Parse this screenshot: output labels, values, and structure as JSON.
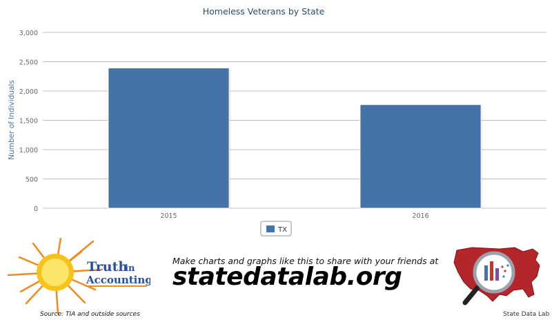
{
  "chart_data": {
    "type": "bar",
    "title": "Homeless Veterans by State",
    "xlabel": "",
    "ylabel": "Number of Individuals",
    "categories": [
      "2015",
      "2016"
    ],
    "series": [
      {
        "name": "TX",
        "values": [
          2393,
          1768
        ],
        "color": "#4572A7"
      }
    ],
    "ylim": [
      0,
      3000
    ],
    "yticks": [
      0,
      500,
      1000,
      1500,
      2000,
      2500,
      3000
    ],
    "ytick_labels": [
      "0",
      "500",
      "1,000",
      "1,500",
      "2,000",
      "2,500",
      "3,000"
    ],
    "grid": true,
    "legend": "bottom-center"
  },
  "footer": {
    "tia_logo_text_line1": "Truth",
    "tia_logo_text_in": "in",
    "tia_logo_text_line2": "Accounting",
    "source": "Source: TIA and outside sources",
    "promo": "Make charts and graphs like this to share with your friends at",
    "site": "statedatalab.org",
    "sdl_label": "State Data Lab"
  },
  "colors": {
    "bar": "#4572A7",
    "title": "#274b6d",
    "axis_label": "#4d759e",
    "sun": "#f7c31b",
    "rays": "#f18a1c",
    "logo_text": "#2b4fa0",
    "map": "#b5262b"
  }
}
